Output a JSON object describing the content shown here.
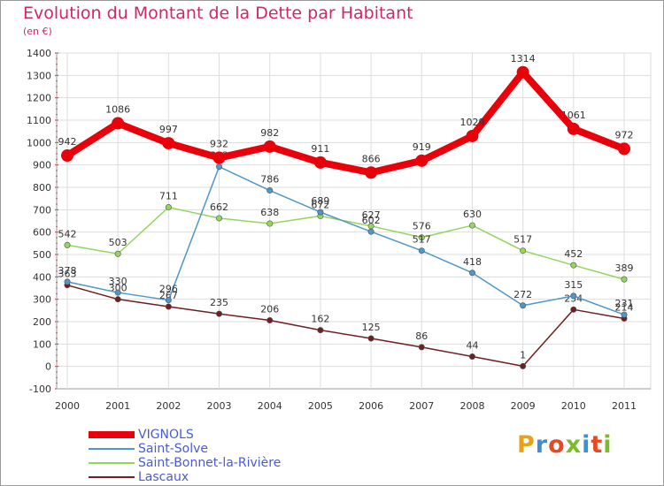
{
  "chart_data": {
    "type": "line",
    "title": "Evolution du Montant de la Dette par Habitant",
    "subtitle": "(en €)",
    "x": [
      "2000",
      "2001",
      "2002",
      "2003",
      "2004",
      "2005",
      "2006",
      "2007",
      "2008",
      "2009",
      "2010",
      "2011"
    ],
    "yticks": [
      -100,
      0,
      100,
      200,
      300,
      400,
      500,
      600,
      700,
      800,
      900,
      1000,
      1100,
      1200,
      1300,
      1400
    ],
    "ylim": [
      -100,
      1400
    ],
    "grid": true,
    "legend_position": "bottom-left",
    "series": [
      {
        "name": "VIGNOLS",
        "color": "#e8000b",
        "values": [
          942,
          1086,
          997,
          932,
          982,
          911,
          866,
          919,
          1029,
          1314,
          1061,
          972
        ]
      },
      {
        "name": "Saint-Solve",
        "color": "#4f97c9",
        "values": [
          378,
          330,
          296,
          892,
          786,
          689,
          602,
          517,
          418,
          272,
          315,
          231
        ]
      },
      {
        "name": "Saint-Bonnet-la-Rivière",
        "color": "#92d65d",
        "values": [
          542,
          503,
          711,
          662,
          638,
          672,
          627,
          576,
          630,
          517,
          452,
          389
        ]
      },
      {
        "name": "Lascaux",
        "color": "#6e1f21",
        "values": [
          363,
          300,
          267,
          235,
          206,
          162,
          125,
          86,
          44,
          1,
          254,
          214
        ]
      }
    ]
  },
  "logo": {
    "letters": [
      "P",
      "r",
      "o",
      "x",
      "i",
      "t",
      "i"
    ],
    "colors": [
      "#e8a21a",
      "#3d8fd6",
      "#e24b24",
      "#7dbb2e",
      "#3d8fd6",
      "#e24b24",
      "#7dbb2e"
    ]
  }
}
